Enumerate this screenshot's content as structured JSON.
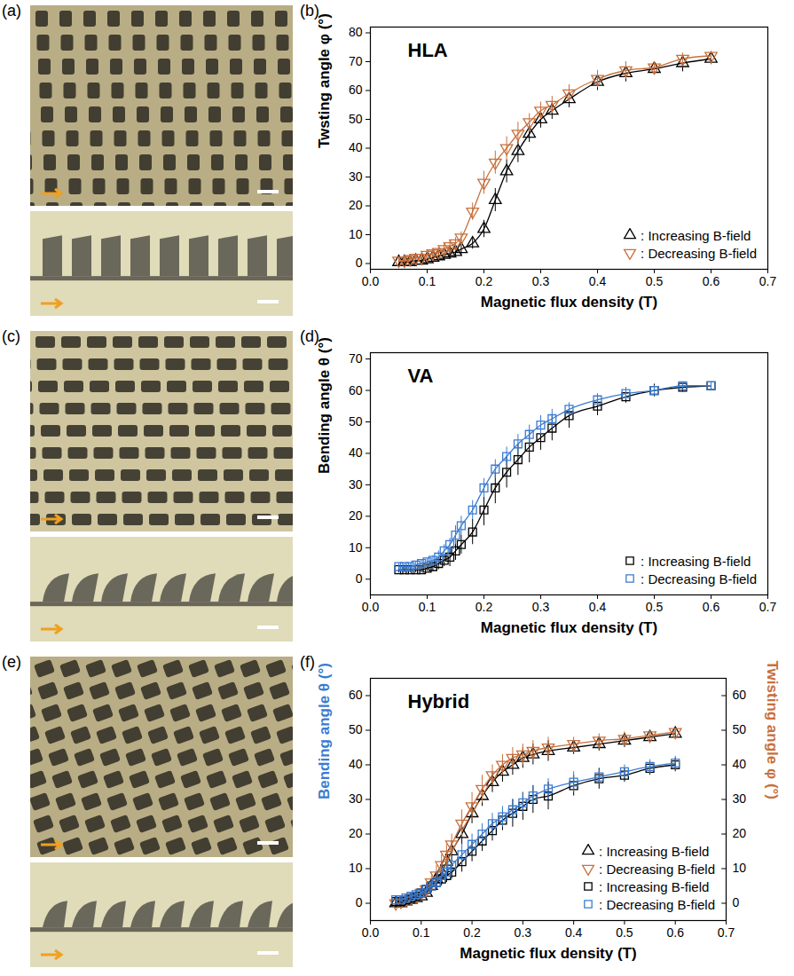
{
  "images": [
    {
      "panel_label": "(a)"
    },
    {
      "panel_label": "(c)"
    },
    {
      "panel_label": "(e)"
    }
  ],
  "chart_data": [
    {
      "type": "scatter",
      "panel_label": "(b)",
      "title": "HLA",
      "xlabel": "Magnetic flux density (T)",
      "ylabel": "Twsting angle φ (°)",
      "x": [
        0.05,
        0.06,
        0.07,
        0.08,
        0.09,
        0.1,
        0.11,
        0.12,
        0.13,
        0.14,
        0.15,
        0.16,
        0.18,
        0.2,
        0.22,
        0.24,
        0.26,
        0.28,
        0.3,
        0.32,
        0.35,
        0.4,
        0.45,
        0.5,
        0.55,
        0.6
      ],
      "xlim": [
        0,
        0.7
      ],
      "xticks": [
        {
          "value": 0,
          "label": "0.0"
        },
        0.1,
        0.2,
        0.3,
        0.4,
        0.5,
        0.6,
        0.7
      ],
      "ylim": [
        -2,
        82
      ],
      "yticks": [
        0,
        10,
        20,
        30,
        40,
        50,
        60,
        70,
        80
      ],
      "legend": "lower right",
      "series": [
        {
          "name": ": Increasing B-field",
          "color": "#000000",
          "marker": "triangle",
          "line_style": "solid",
          "values": [
            0.5,
            0.5,
            0.5,
            1,
            1,
            1.5,
            2,
            2.5,
            3,
            3.5,
            4,
            5,
            7,
            12,
            22,
            32,
            39,
            45,
            50,
            53,
            57,
            63,
            66,
            67.5,
            69.5,
            71
          ],
          "errors": [
            1,
            1,
            1,
            1,
            1,
            1,
            1,
            1.5,
            1.5,
            1.5,
            2,
            2,
            2,
            3,
            4,
            4,
            4,
            3,
            3,
            3,
            3,
            3,
            3,
            2,
            3,
            2
          ]
        },
        {
          "name": ": Decreasing B-field",
          "color": "#c8703c",
          "marker": "triangle-down",
          "line_style": "solid",
          "values": [
            1,
            1,
            1.5,
            2,
            2,
            3,
            3.5,
            4,
            5,
            6,
            7,
            9,
            18,
            28,
            35,
            40,
            45,
            49,
            53,
            55,
            59,
            64,
            67,
            68,
            71,
            72
          ],
          "errors": [
            1,
            1,
            1,
            1,
            1,
            1.5,
            1.5,
            1.5,
            2,
            2,
            2,
            2,
            3,
            4,
            4,
            4,
            4,
            3,
            3,
            3,
            3,
            3,
            3,
            2,
            2,
            1.5
          ]
        }
      ]
    },
    {
      "type": "scatter",
      "panel_label": "(d)",
      "title": "VA",
      "xlabel": "Magnetic flux density (T)",
      "ylabel": "Bending angle θ (°)",
      "x": [
        0.05,
        0.06,
        0.07,
        0.08,
        0.09,
        0.1,
        0.11,
        0.12,
        0.13,
        0.14,
        0.15,
        0.16,
        0.18,
        0.2,
        0.22,
        0.24,
        0.26,
        0.28,
        0.3,
        0.32,
        0.35,
        0.4,
        0.45,
        0.5,
        0.55,
        0.6
      ],
      "xlim": [
        0,
        0.7
      ],
      "xticks": [
        {
          "value": 0,
          "label": "0.0"
        },
        0.1,
        0.2,
        0.3,
        0.4,
        0.5,
        0.6,
        0.7
      ],
      "ylim": [
        -5,
        72
      ],
      "yticks": [
        0,
        10,
        20,
        30,
        40,
        50,
        60,
        70
      ],
      "legend": "lower right",
      "series": [
        {
          "name": ": Increasing B-field",
          "color": "#000000",
          "marker": "square",
          "line_style": "solid",
          "values": [
            3,
            3,
            3,
            3,
            3,
            3.5,
            4,
            5,
            6,
            7,
            9,
            11,
            15,
            22,
            29,
            34,
            38,
            42,
            45,
            48,
            52,
            55,
            58,
            60,
            61,
            61.5
          ],
          "errors": [
            1,
            1,
            1,
            1,
            1,
            1,
            1.5,
            2,
            2,
            3,
            3,
            3,
            4,
            5,
            5,
            5,
            5,
            5,
            4,
            4,
            4,
            3,
            2,
            2,
            1.5,
            1
          ]
        },
        {
          "name": ": Decreasing B-field",
          "color": "#3b7bd0",
          "marker": "square",
          "line_style": "solid",
          "values": [
            4,
            4,
            4,
            4.5,
            5,
            5.5,
            6,
            7,
            9,
            11,
            14,
            17,
            22,
            29,
            35,
            39,
            43,
            46,
            49,
            51,
            54,
            57,
            59,
            60,
            61.5,
            61.5
          ],
          "errors": [
            1,
            1,
            1,
            1,
            1,
            1,
            1.5,
            2,
            2,
            2,
            3,
            3,
            3,
            3,
            3,
            3,
            3,
            3,
            3,
            3,
            2,
            2,
            2,
            1.5,
            1,
            1
          ]
        }
      ]
    },
    {
      "type": "scatter",
      "panel_label": "(f)",
      "title": "Hybrid",
      "xlabel": "Magnetic flux density (T)",
      "ylabel": "Bending angle θ (°)",
      "y2label": "Twisting angle φ (°)",
      "x": [
        0.05,
        0.06,
        0.07,
        0.08,
        0.09,
        0.1,
        0.11,
        0.12,
        0.13,
        0.14,
        0.15,
        0.16,
        0.18,
        0.2,
        0.22,
        0.24,
        0.26,
        0.28,
        0.3,
        0.32,
        0.35,
        0.4,
        0.45,
        0.5,
        0.55,
        0.6
      ],
      "xlim": [
        0,
        0.7
      ],
      "xticks": [
        {
          "value": 0,
          "label": "0.0"
        },
        0.1,
        0.2,
        0.3,
        0.4,
        0.5,
        0.6,
        0.7
      ],
      "ylim": [
        -5,
        65
      ],
      "yticks": [
        0,
        10,
        20,
        30,
        40,
        50,
        60
      ],
      "y2lim": [
        -5,
        65
      ],
      "y2ticks": [
        0,
        10,
        20,
        30,
        40,
        50,
        60
      ],
      "legend": "lower right",
      "series": [
        {
          "name": ": Increasing B-field",
          "color": "#000000",
          "marker": "triangle",
          "line_style": "solid",
          "axis": "y2",
          "values": [
            0,
            0,
            0.5,
            1,
            1.5,
            2,
            3,
            5,
            7,
            9,
            12,
            15,
            20,
            26,
            31,
            35,
            38,
            40,
            42,
            43,
            44,
            45,
            46,
            47,
            48,
            49
          ],
          "errors": [
            1,
            1,
            1,
            1,
            1,
            1,
            1.5,
            2,
            2,
            2,
            2,
            3,
            3,
            3,
            3,
            3,
            3,
            3,
            3,
            3,
            3,
            2,
            2,
            2,
            1.5,
            1
          ]
        },
        {
          "name": ": Decreasing B-field",
          "color": "#c8703c",
          "marker": "triangle-down",
          "line_style": "solid",
          "axis": "y2",
          "values": [
            0,
            0.5,
            1,
            1.5,
            2,
            3,
            4,
            6,
            8,
            11,
            14,
            17,
            23,
            28,
            33,
            37,
            40,
            42,
            43,
            44,
            45,
            46,
            47,
            47.5,
            48.5,
            49.5
          ],
          "errors": [
            1,
            1,
            1,
            1,
            1,
            1.5,
            2,
            2,
            3,
            3,
            3,
            3,
            4,
            4,
            4,
            3,
            3,
            3,
            3,
            3,
            3,
            2,
            2,
            2,
            1.5,
            1
          ]
        },
        {
          "name": ": Increasing B-field",
          "color": "#000000",
          "marker": "square",
          "line_style": "solid",
          "values": [
            0.5,
            0.5,
            1,
            1.5,
            2,
            3,
            4,
            5,
            6,
            7,
            8,
            9,
            12,
            15,
            18,
            21,
            24,
            26,
            28,
            30,
            31,
            34,
            36,
            37,
            39,
            40
          ],
          "errors": [
            1,
            1,
            1,
            1,
            1,
            1,
            1,
            1.5,
            2,
            2,
            2,
            2,
            3,
            3,
            3,
            3,
            3,
            4,
            4,
            4,
            4,
            3,
            3,
            2,
            2,
            2
          ]
        },
        {
          "name": ": Decreasing B-field",
          "color": "#3b7bd0",
          "marker": "square",
          "line_style": "solid",
          "values": [
            1,
            1,
            1.5,
            2,
            2.5,
            3,
            4,
            5,
            6,
            8,
            9,
            11,
            14,
            17,
            20,
            23,
            25,
            27,
            29,
            31,
            33,
            35,
            36.5,
            38,
            39.5,
            40.5
          ],
          "errors": [
            1,
            1,
            1,
            1,
            1,
            1,
            1.5,
            1.5,
            2,
            2,
            2,
            2,
            3,
            3,
            3,
            3,
            3,
            3,
            3,
            3,
            3,
            3,
            2,
            2,
            2,
            2
          ]
        }
      ]
    }
  ]
}
